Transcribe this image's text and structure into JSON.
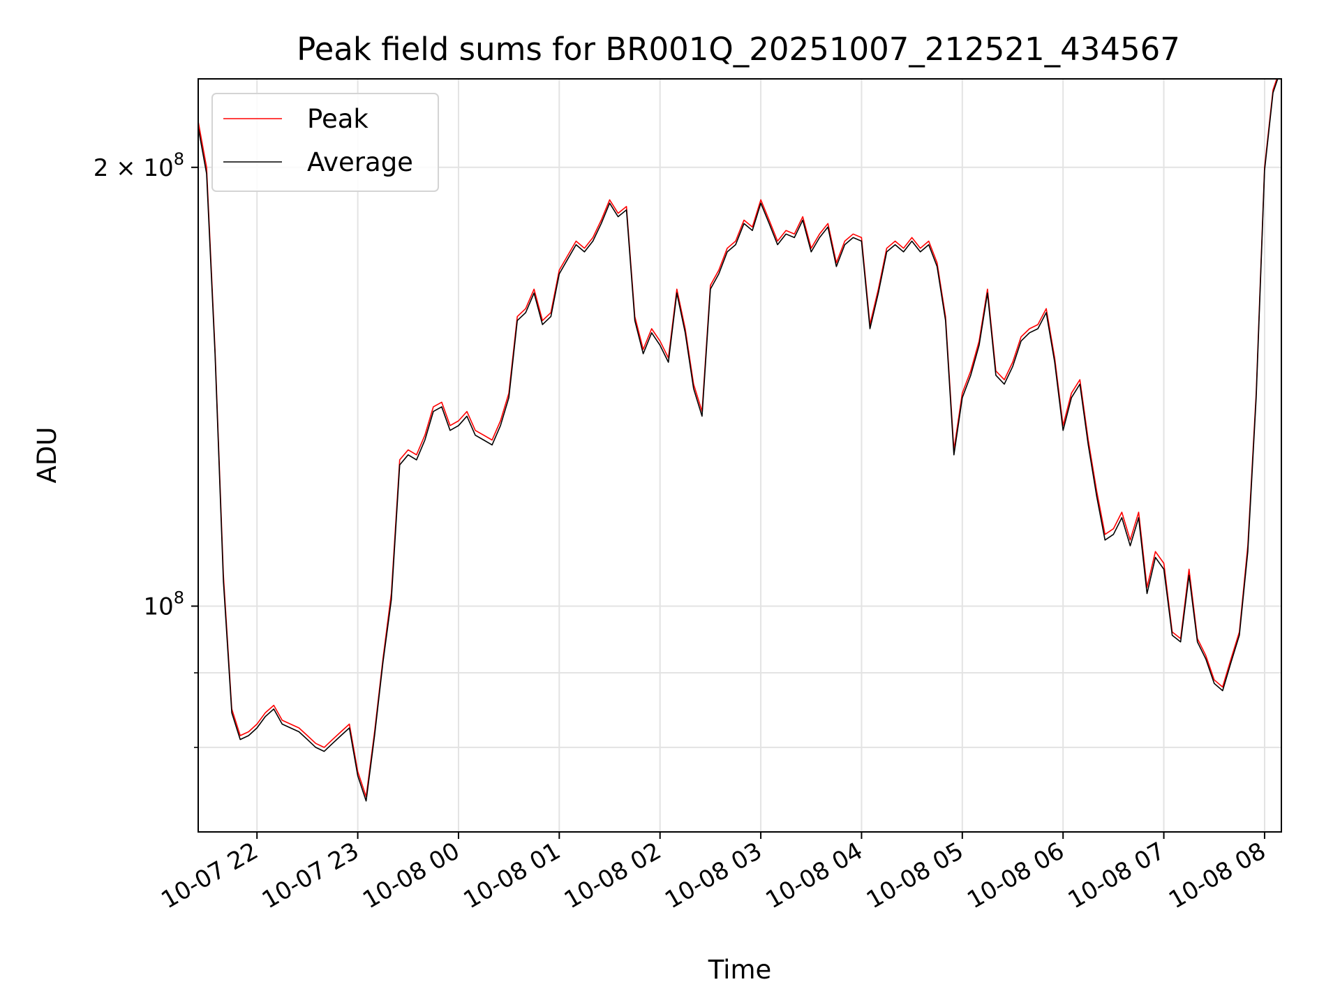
{
  "chart_data": {
    "type": "line",
    "title": "Peak field sums for BR001Q_20251007_212521_434567",
    "xlabel": "Time",
    "ylabel": "ADU",
    "y_scale": "log",
    "ylim": [
      70000000,
      230000000
    ],
    "xlim": [
      "2025-10-07 21:25",
      "2025-10-08 08:10"
    ],
    "x_ticks": [
      "10-07 22",
      "10-07 23",
      "10-08 00",
      "10-08 01",
      "10-08 02",
      "10-08 03",
      "10-08 04",
      "10-08 05",
      "10-08 06",
      "10-08 07",
      "10-08 08"
    ],
    "x_tick_times": [
      "2025-10-07 22:00",
      "2025-10-07 23:00",
      "2025-10-08 00:00",
      "2025-10-08 01:00",
      "2025-10-08 02:00",
      "2025-10-08 03:00",
      "2025-10-08 04:00",
      "2025-10-08 05:00",
      "2025-10-08 06:00",
      "2025-10-08 07:00",
      "2025-10-08 08:00"
    ],
    "y_ticks": [
      {
        "label_base": "10",
        "label_exp": "8",
        "label_prefix": "",
        "value": 100000000
      },
      {
        "label_base": "10",
        "label_exp": "8",
        "label_prefix": "2 × ",
        "value": 200000000
      }
    ],
    "y_minor_values": [
      80000000,
      90000000
    ],
    "grid": true,
    "legend_position": "top-left",
    "colors": {
      "Peak": "#ff0000",
      "Average": "#000000"
    },
    "x": [
      "2025-10-07 21:25",
      "2025-10-07 21:30",
      "2025-10-07 21:35",
      "2025-10-07 21:40",
      "2025-10-07 21:45",
      "2025-10-07 21:50",
      "2025-10-07 21:55",
      "2025-10-07 22:00",
      "2025-10-07 22:05",
      "2025-10-07 22:10",
      "2025-10-07 22:15",
      "2025-10-07 22:20",
      "2025-10-07 22:25",
      "2025-10-07 22:30",
      "2025-10-07 22:35",
      "2025-10-07 22:40",
      "2025-10-07 22:45",
      "2025-10-07 22:50",
      "2025-10-07 22:55",
      "2025-10-07 23:00",
      "2025-10-07 23:05",
      "2025-10-07 23:10",
      "2025-10-07 23:15",
      "2025-10-07 23:20",
      "2025-10-07 23:25",
      "2025-10-07 23:30",
      "2025-10-07 23:35",
      "2025-10-07 23:40",
      "2025-10-07 23:45",
      "2025-10-07 23:50",
      "2025-10-07 23:55",
      "2025-10-08 00:00",
      "2025-10-08 00:05",
      "2025-10-08 00:10",
      "2025-10-08 00:15",
      "2025-10-08 00:20",
      "2025-10-08 00:25",
      "2025-10-08 00:30",
      "2025-10-08 00:35",
      "2025-10-08 00:40",
      "2025-10-08 00:45",
      "2025-10-08 00:50",
      "2025-10-08 00:55",
      "2025-10-08 01:00",
      "2025-10-08 01:05",
      "2025-10-08 01:10",
      "2025-10-08 01:15",
      "2025-10-08 01:20",
      "2025-10-08 01:25",
      "2025-10-08 01:30",
      "2025-10-08 01:35",
      "2025-10-08 01:40",
      "2025-10-08 01:45",
      "2025-10-08 01:50",
      "2025-10-08 01:55",
      "2025-10-08 02:00",
      "2025-10-08 02:05",
      "2025-10-08 02:10",
      "2025-10-08 02:15",
      "2025-10-08 02:20",
      "2025-10-08 02:25",
      "2025-10-08 02:30",
      "2025-10-08 02:35",
      "2025-10-08 02:40",
      "2025-10-08 02:45",
      "2025-10-08 02:50",
      "2025-10-08 02:55",
      "2025-10-08 03:00",
      "2025-10-08 03:05",
      "2025-10-08 03:10",
      "2025-10-08 03:15",
      "2025-10-08 03:20",
      "2025-10-08 03:25",
      "2025-10-08 03:30",
      "2025-10-08 03:35",
      "2025-10-08 03:40",
      "2025-10-08 03:45",
      "2025-10-08 03:50",
      "2025-10-08 03:55",
      "2025-10-08 04:00",
      "2025-10-08 04:05",
      "2025-10-08 04:10",
      "2025-10-08 04:15",
      "2025-10-08 04:20",
      "2025-10-08 04:25",
      "2025-10-08 04:30",
      "2025-10-08 04:35",
      "2025-10-08 04:40",
      "2025-10-08 04:45",
      "2025-10-08 04:50",
      "2025-10-08 04:55",
      "2025-10-08 05:00",
      "2025-10-08 05:05",
      "2025-10-08 05:10",
      "2025-10-08 05:15",
      "2025-10-08 05:20",
      "2025-10-08 05:25",
      "2025-10-08 05:30",
      "2025-10-08 05:35",
      "2025-10-08 05:40",
      "2025-10-08 05:45",
      "2025-10-08 05:50",
      "2025-10-08 05:55",
      "2025-10-08 06:00",
      "2025-10-08 06:05",
      "2025-10-08 06:10",
      "2025-10-08 06:15",
      "2025-10-08 06:20",
      "2025-10-08 06:25",
      "2025-10-08 06:30",
      "2025-10-08 06:35",
      "2025-10-08 06:40",
      "2025-10-08 06:45",
      "2025-10-08 06:50",
      "2025-10-08 06:55",
      "2025-10-08 07:00",
      "2025-10-08 07:05",
      "2025-10-08 07:10",
      "2025-10-08 07:15",
      "2025-10-08 07:20",
      "2025-10-08 07:25",
      "2025-10-08 07:30",
      "2025-10-08 07:35",
      "2025-10-08 07:40",
      "2025-10-08 07:45",
      "2025-10-08 07:50",
      "2025-10-08 07:55",
      "2025-10-08 08:00",
      "2025-10-08 08:05",
      "2025-10-08 08:10"
    ],
    "series": [
      {
        "name": "Peak",
        "values": [
          215000000,
          200000000,
          150000000,
          105000000,
          85000000,
          81500000,
          82000000,
          83000000,
          84500000,
          85500000,
          83500000,
          83000000,
          82500000,
          81500000,
          80500000,
          80000000,
          81000000,
          82000000,
          83000000,
          77000000,
          74000000,
          82000000,
          92000000,
          102000000,
          126000000,
          128000000,
          127000000,
          131000000,
          137000000,
          138000000,
          133000000,
          134000000,
          136000000,
          132000000,
          131000000,
          130000000,
          134000000,
          140000000,
          158000000,
          160000000,
          165000000,
          157000000,
          159000000,
          170000000,
          174000000,
          178000000,
          176000000,
          179000000,
          184000000,
          190000000,
          186000000,
          188000000,
          158000000,
          150000000,
          155000000,
          152000000,
          148000000,
          165000000,
          155000000,
          142000000,
          136000000,
          166000000,
          170000000,
          176000000,
          178000000,
          184000000,
          182000000,
          190000000,
          184000000,
          178000000,
          181000000,
          180000000,
          185000000,
          176000000,
          180000000,
          183000000,
          172000000,
          178000000,
          180000000,
          179000000,
          156000000,
          165000000,
          176000000,
          178000000,
          176000000,
          179000000,
          176000000,
          178000000,
          172000000,
          158000000,
          128000000,
          140000000,
          145000000,
          152000000,
          165000000,
          145000000,
          143000000,
          147000000,
          153000000,
          155000000,
          156000000,
          160000000,
          148000000,
          133000000,
          140000000,
          143000000,
          130000000,
          120000000,
          112000000,
          113000000,
          116000000,
          111000000,
          116000000,
          103000000,
          109000000,
          107000000,
          96000000,
          95000000,
          106000000,
          95000000,
          92500000,
          89000000,
          88000000,
          92000000,
          96000000,
          110000000,
          140000000,
          200000000,
          226000000,
          235000000
        ]
      },
      {
        "name": "Average",
        "values": [
          213000000,
          198000000,
          149000000,
          104000000,
          84500000,
          81000000,
          81500000,
          82500000,
          84000000,
          85000000,
          83000000,
          82500000,
          82000000,
          81000000,
          80000000,
          79500000,
          80500000,
          81500000,
          82500000,
          76500000,
          73500000,
          81500000,
          91500000,
          101000000,
          125000000,
          127000000,
          126000000,
          130000000,
          136000000,
          137000000,
          132000000,
          133000000,
          135000000,
          131000000,
          130000000,
          129000000,
          133000000,
          139000000,
          157000000,
          159000000,
          164000000,
          156000000,
          158000000,
          169000000,
          173000000,
          177000000,
          175000000,
          178000000,
          183000000,
          189000000,
          185000000,
          187000000,
          157000000,
          149000000,
          154000000,
          151000000,
          147000000,
          164000000,
          154000000,
          141000000,
          135000000,
          165000000,
          169000000,
          175000000,
          177000000,
          183000000,
          181000000,
          189000000,
          183000000,
          177000000,
          180000000,
          179000000,
          184000000,
          175000000,
          179000000,
          182000000,
          171000000,
          177000000,
          179000000,
          178000000,
          155000000,
          164000000,
          175000000,
          177000000,
          175000000,
          178000000,
          175000000,
          177000000,
          171000000,
          157000000,
          127000000,
          139000000,
          144000000,
          151000000,
          164000000,
          144000000,
          142000000,
          146000000,
          152000000,
          154000000,
          155000000,
          159000000,
          147000000,
          132000000,
          139000000,
          142000000,
          129000000,
          119000000,
          111000000,
          112000000,
          115000000,
          110000000,
          115000000,
          102000000,
          108000000,
          106000000,
          95500000,
          94500000,
          105000000,
          94500000,
          92000000,
          88500000,
          87500000,
          91500000,
          95500000,
          109000000,
          139000000,
          199000000,
          225000000,
          234000000
        ]
      }
    ]
  }
}
